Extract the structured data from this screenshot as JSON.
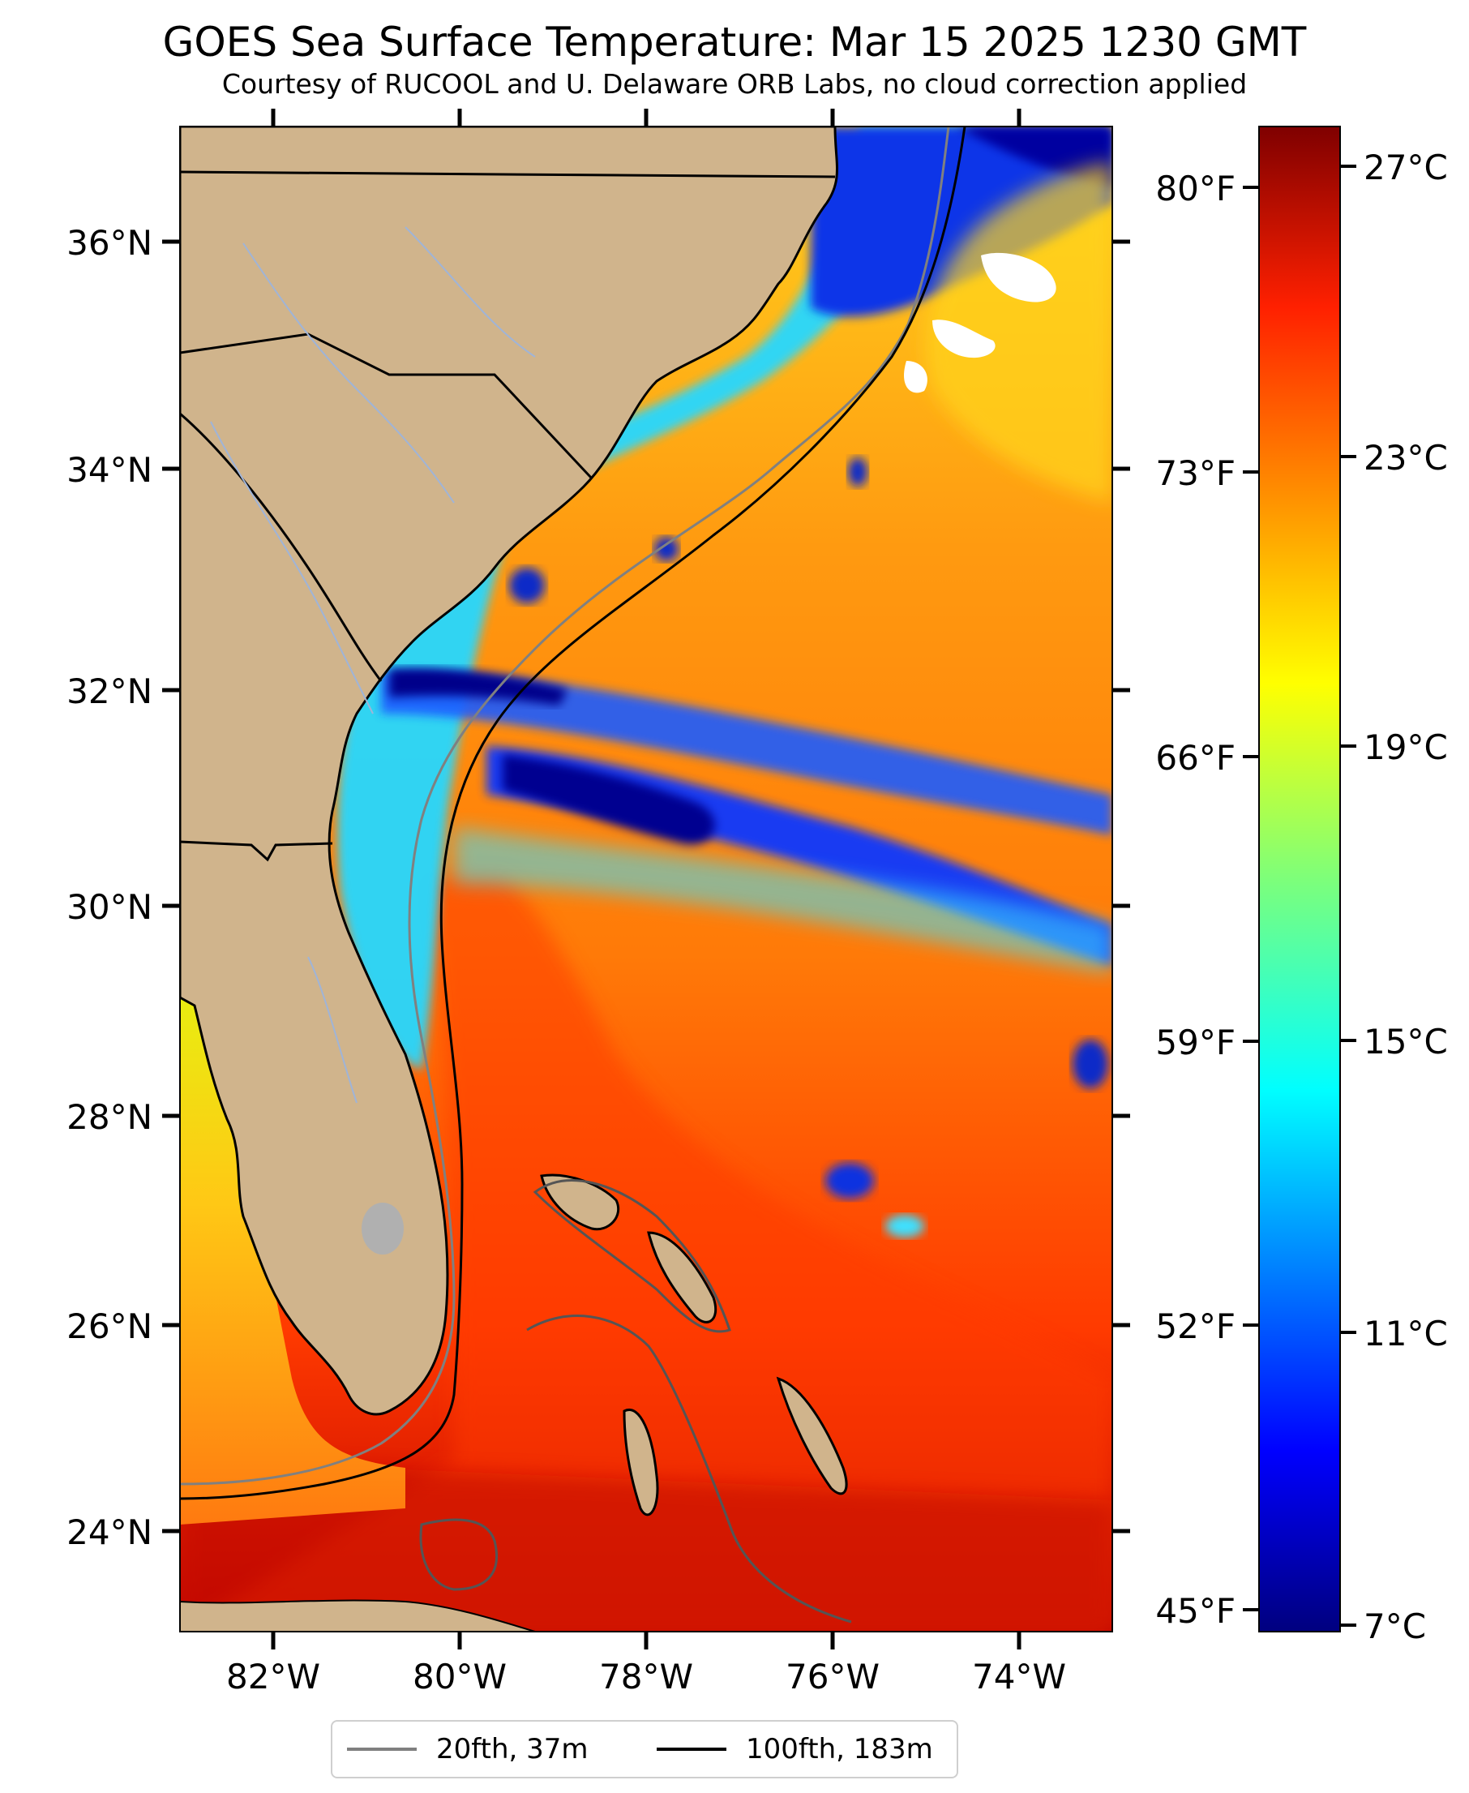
{
  "title": "GOES Sea Surface Temperature: Mar 15 2025 1230 GMT",
  "subtitle": "Courtesy of RUCOOL and U. Delaware ORB Labs, no cloud correction applied",
  "map": {
    "lon_range": [
      -83.0,
      -73.0
    ],
    "lat_range": [
      23.0,
      37.0
    ],
    "lat_ticks": [
      "24°N",
      "26°N",
      "28°N",
      "30°N",
      "32°N",
      "34°N",
      "36°N"
    ],
    "lon_ticks": [
      "82°W",
      "80°W",
      "78°W",
      "76°W",
      "74°W"
    ],
    "land_color": "#d0b48c",
    "cloud_color": "#ffffff"
  },
  "colorbar": {
    "celsius_ticks": [
      "27°C",
      "23°C",
      "19°C",
      "15°C",
      "11°C",
      "7°C"
    ],
    "fahrenheit_ticks": [
      "80°F",
      "73°F",
      "66°F",
      "59°F",
      "52°F",
      "45°F"
    ],
    "colormap": "jet",
    "range_c": [
      7,
      28
    ]
  },
  "legend": [
    {
      "label": "20fth, 37m",
      "color": "#808080"
    },
    {
      "label": "100fth, 183m",
      "color": "#000000"
    }
  ]
}
